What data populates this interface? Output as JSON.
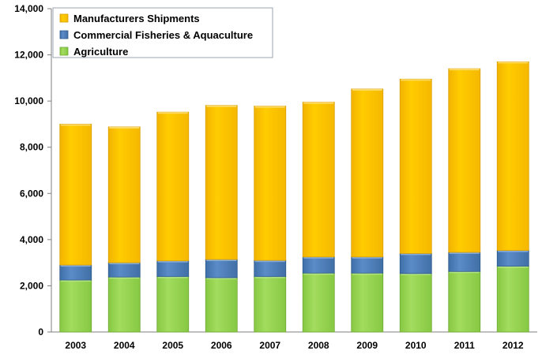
{
  "chart_data": {
    "type": "bar",
    "stacked": true,
    "title": "",
    "xlabel": "",
    "ylabel": "",
    "categories": [
      "2003",
      "2004",
      "2005",
      "2006",
      "2007",
      "2008",
      "2009",
      "2010",
      "2011",
      "2012"
    ],
    "series": [
      {
        "name": "Agriculture",
        "color": "#92D050",
        "values": [
          2250,
          2380,
          2400,
          2350,
          2400,
          2550,
          2550,
          2530,
          2620,
          2850
        ]
      },
      {
        "name": "Commercial Fisheries & Aquaculture",
        "color": "#4F81BD",
        "values": [
          650,
          620,
          680,
          790,
          700,
          700,
          700,
          870,
          830,
          680
        ]
      },
      {
        "name": "Manufacturers Shipments",
        "color": "#FFC000",
        "values": [
          6100,
          5880,
          6440,
          6670,
          6680,
          6700,
          7270,
          7550,
          7950,
          8170
        ]
      }
    ],
    "legend_order": [
      "Manufacturers Shipments",
      "Commercial Fisheries & Aquaculture",
      "Agriculture"
    ],
    "legend_position": "top-left",
    "ylim": [
      0,
      14000
    ],
    "yticks": [
      "0",
      "2,000",
      "4,000",
      "6,000",
      "8,000",
      "10,000",
      "12,000",
      "14,000"
    ],
    "grid": false
  }
}
